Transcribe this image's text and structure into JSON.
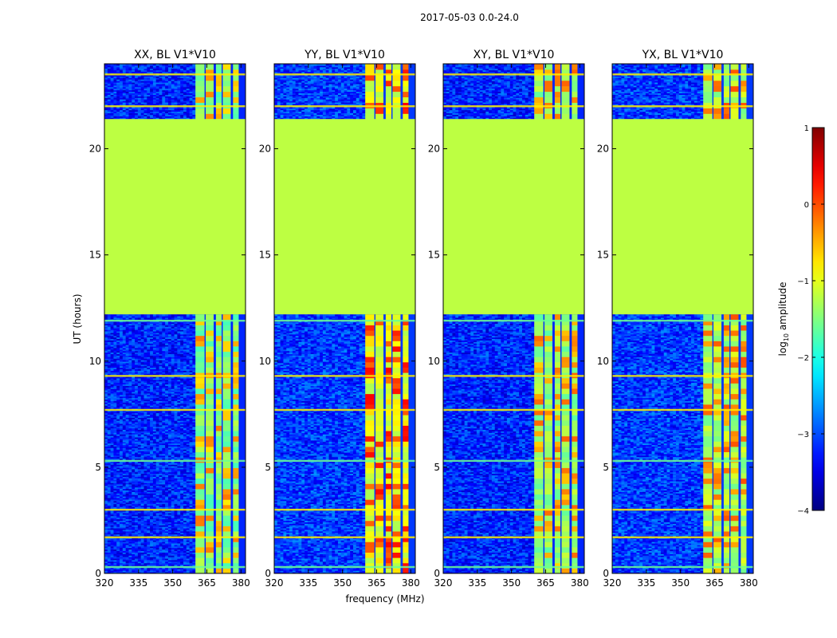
{
  "chart_data": {
    "type": "heatmap",
    "suptitle": "2017-05-03 0.0-24.0",
    "xlabel": "frequency (MHz)",
    "ylabel": "UT (hours)",
    "xlim": [
      320,
      382
    ],
    "ylim": [
      0,
      24
    ],
    "xticks": [
      320,
      335,
      350,
      365,
      380
    ],
    "yticks": [
      0,
      5,
      10,
      15,
      20
    ],
    "colorscale": "jet",
    "colorbar": {
      "label": "log10 amplitude",
      "label_main": "log",
      "label_sub": "10",
      "label_rest": " amplitude",
      "range": [
        -4,
        1
      ],
      "ticks": [
        "1",
        "0",
        "−1",
        "−2",
        "−3",
        "−4"
      ],
      "tick_values": [
        1,
        0,
        -1,
        -2,
        -3,
        -4
      ]
    },
    "panels": [
      {
        "title": "XX, BL V1*V10",
        "background": -3.2,
        "flagged": -1.2,
        "rfi_level": -1.5,
        "strong": -0.5
      },
      {
        "title": "YY, BL V1*V10",
        "background": -3.1,
        "flagged": -1.2,
        "rfi_level": -1.0,
        "strong": 0.1
      },
      {
        "title": "XY, BL V1*V10",
        "background": -3.2,
        "flagged": -1.2,
        "rfi_level": -1.4,
        "strong": -0.4
      },
      {
        "title": "YX, BL V1*V10",
        "background": -3.1,
        "flagged": -1.2,
        "rfi_level": -1.3,
        "strong": -0.3
      }
    ],
    "flagged_ut_range": [
      12.2,
      21.4
    ],
    "rfi_freq_bands_mhz": [
      [
        360,
        364
      ],
      [
        364.5,
        368
      ],
      [
        369,
        371.5
      ],
      [
        372,
        375.5
      ],
      [
        376.5,
        379
      ]
    ],
    "notes": "Flagged region (uniform value ~ -1.2) between ~12.2 and ~21.4 UT; persistent RFI bands near 360-379 MHz; horizontal streaks at times ~0.3, 1.7, 3.0, 5.3, 7.7, 9.3, 11.9, 22.0, 23.5 UT."
  }
}
